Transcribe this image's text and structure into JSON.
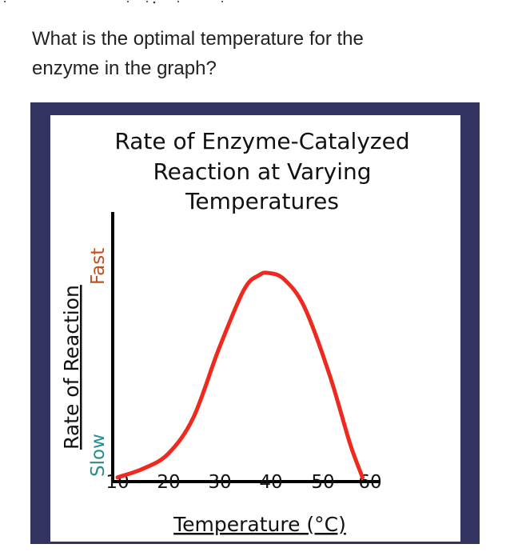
{
  "question": {
    "line1": "What is the optimal temperature for the",
    "line2": "enzyme in the graph?"
  },
  "colors": {
    "frame": "#33335f",
    "curve": "#ee2a1f",
    "axis": "#000000",
    "fast_label": "#c0511a",
    "slow_label": "#2a8c8c"
  },
  "chart_data": {
    "type": "line",
    "title_lines": [
      "Rate of Enzyme-Catalyzed",
      "Reaction at Varying",
      "Temperatures"
    ],
    "xlabel": "Temperature (°C)",
    "ylabel": "Rate of Reaction",
    "y_low_label": "Slow",
    "y_high_label": "Fast",
    "x_ticks": [
      "10",
      "20",
      "30",
      "40",
      "50",
      "60"
    ],
    "xlim": [
      10,
      60
    ],
    "grid": false,
    "series": [
      {
        "x": [
          10,
          15,
          20,
          25,
          30,
          35,
          38,
          40,
          43,
          47,
          52,
          56,
          58.5
        ],
        "y": [
          0.02,
          0.06,
          0.13,
          0.3,
          0.62,
          0.9,
          0.97,
          0.98,
          0.95,
          0.82,
          0.5,
          0.18,
          0.02
        ]
      }
    ]
  }
}
